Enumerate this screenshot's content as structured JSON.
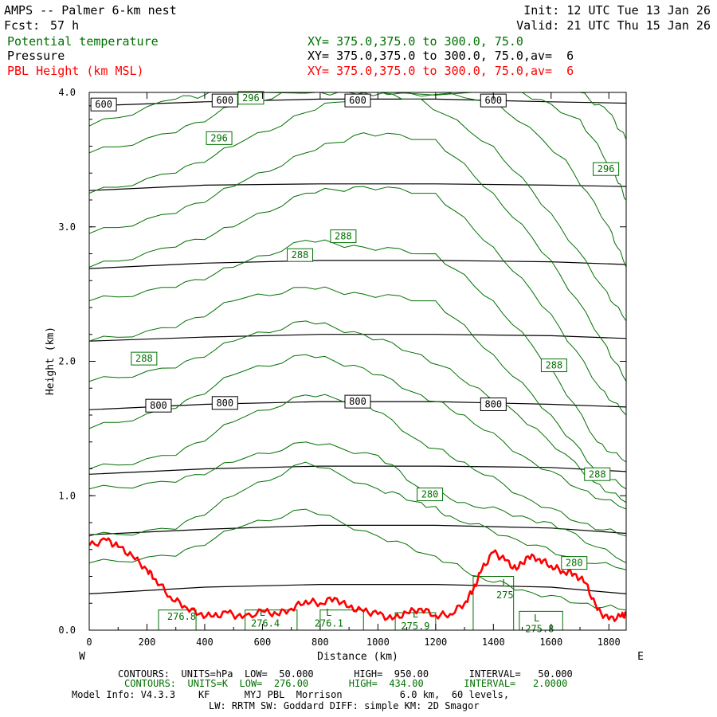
{
  "header": {
    "title": "AMPS -- Palmer 6-km nest",
    "fcst_label": "Fcst:",
    "fcst_value": "57 h",
    "init": "Init: 12 UTC Tue 13 Jan 26",
    "valid": "Valid: 21 UTC Thu 15 Jan 26"
  },
  "fields": [
    {
      "name": "Potential temperature",
      "xy": "XY= 375.0,375.0 to 300.0, 75.0",
      "color": "#007000"
    },
    {
      "name": "Pressure",
      "xy": "XY= 375.0,375.0 to 300.0, 75.0,av=  6",
      "color": "#000000"
    },
    {
      "name": "PBL Height (km MSL)",
      "xy": "XY= 375.0,375.0 to 300.0, 75.0,av=  6",
      "color": "#ff0000"
    }
  ],
  "footer": {
    "line1": "CONTOURS:  UNITS=hPa  LOW=  50.000       HIGH=  950.00       INTERVAL=   50.000",
    "line2": "CONTOURS:  UNITS=K  LOW=  276.00       HIGH=  434.00       INTERVAL=   2.0000",
    "line3": "Model Info: V4.3.3    KF      MYJ PBL  Morrison          6.0 km,  60 levels,",
    "line4": "LW: RRTM SW: Goddard DIFF: simple KM: 2D Smagor"
  },
  "colors": {
    "theta": "#007000",
    "pressure": "#000000",
    "pbl": "#ff0000",
    "axis": "#000000"
  },
  "chart_data": {
    "type": "line",
    "xlabel": "Distance (km)",
    "ylabel": "Height (km)",
    "xlim": [
      0,
      1860
    ],
    "ylim": [
      0,
      4.0
    ],
    "x_ticks": [
      0,
      200,
      400,
      600,
      800,
      1000,
      1200,
      1400,
      1600,
      1800
    ],
    "y_ticks": [
      "0.0",
      "1.0",
      "2.0",
      "3.0",
      "4.0"
    ],
    "x_end_labels": {
      "left": "W",
      "right": "E"
    },
    "grid": false,
    "series": [
      {
        "name": "Pressure",
        "kind": "pressure",
        "color": "#000000",
        "lines": [
          {
            "level": 600,
            "x": [
              0,
              400,
              800,
              1200,
              1600,
              1860
            ],
            "y": [
              3.9,
              3.93,
              3.95,
              3.95,
              3.93,
              3.92
            ]
          },
          {
            "level": 650,
            "x": [
              0,
              400,
              800,
              1200,
              1600,
              1860
            ],
            "y": [
              3.27,
              3.31,
              3.32,
              3.32,
              3.31,
              3.3
            ]
          },
          {
            "level": 700,
            "x": [
              0,
              400,
              800,
              1200,
              1600,
              1860
            ],
            "y": [
              2.69,
              2.73,
              2.75,
              2.75,
              2.74,
              2.72
            ]
          },
          {
            "level": 750,
            "x": [
              0,
              400,
              800,
              1200,
              1600,
              1860
            ],
            "y": [
              2.15,
              2.18,
              2.2,
              2.2,
              2.19,
              2.17
            ]
          },
          {
            "level": 800,
            "x": [
              0,
              400,
              800,
              1200,
              1600,
              1860
            ],
            "y": [
              1.64,
              1.68,
              1.7,
              1.7,
              1.68,
              1.66
            ]
          },
          {
            "level": 850,
            "x": [
              0,
              400,
              800,
              1200,
              1600,
              1860
            ],
            "y": [
              1.16,
              1.2,
              1.22,
              1.22,
              1.21,
              1.18
            ]
          },
          {
            "level": 900,
            "x": [
              0,
              400,
              800,
              1200,
              1600,
              1860
            ],
            "y": [
              0.71,
              0.75,
              0.78,
              0.78,
              0.76,
              0.72
            ]
          },
          {
            "level": 950,
            "x": [
              0,
              400,
              800,
              1200,
              1600,
              1860
            ],
            "y": [
              0.27,
              0.32,
              0.34,
              0.34,
              0.32,
              0.27
            ]
          }
        ]
      },
      {
        "name": "Potential temperature",
        "kind": "theta",
        "color": "#007000",
        "lines": [
          {
            "x": [
              0,
              300,
              500,
              750,
              1000,
              1200,
              1350,
              1500,
              1700,
              1860
            ],
            "y": [
              0.5,
              0.55,
              0.75,
              0.9,
              0.7,
              0.55,
              0.4,
              0.3,
              0.2,
              0.15
            ]
          },
          {
            "x": [
              0,
              300,
              500,
              750,
              1000,
              1150,
              1250,
              1450,
              1650,
              1860
            ],
            "y": [
              0.7,
              0.75,
              1.0,
              1.25,
              1.05,
              0.95,
              0.85,
              0.7,
              0.55,
              0.45
            ]
          },
          {
            "x": [
              0,
              300,
              500,
              750,
              1000,
              1150,
              1300,
              1500,
              1650,
              1860
            ],
            "y": [
              1.05,
              1.1,
              1.25,
              1.4,
              1.3,
              1.05,
              0.95,
              0.85,
              0.75,
              0.5
            ]
          },
          {
            "x": [
              0,
              300,
              500,
              750,
              950,
              1150,
              1300,
              1500,
              1700,
              1860
            ],
            "y": [
              1.2,
              1.3,
              1.55,
              1.75,
              1.7,
              1.4,
              1.25,
              1.0,
              0.8,
              0.7
            ]
          },
          {
            "x": [
              0,
              300,
              500,
              750,
              950,
              1150,
              1300,
              1500,
              1700,
              1860
            ],
            "y": [
              1.5,
              1.65,
              1.9,
              2.05,
              1.95,
              1.75,
              1.6,
              1.3,
              1.05,
              0.9
            ]
          },
          {
            "x": [
              0,
              300,
              500,
              750,
              950,
              1150,
              1350,
              1550,
              1750,
              1860
            ],
            "y": [
              1.85,
              1.95,
              2.15,
              2.3,
              2.2,
              2.05,
              1.8,
              1.5,
              1.1,
              0.95
            ]
          },
          {
            "x": [
              0,
              300,
              500,
              750,
              950,
              1200,
              1400,
              1600,
              1750,
              1860
            ],
            "y": [
              2.15,
              2.25,
              2.45,
              2.55,
              2.5,
              2.45,
              2.05,
              1.6,
              1.2,
              1.05
            ]
          },
          {
            "x": [
              0,
              300,
              500,
              750,
              950,
              1200,
              1400,
              1600,
              1760,
              1860
            ],
            "y": [
              2.45,
              2.55,
              2.7,
              2.9,
              2.85,
              2.8,
              2.45,
              1.95,
              1.4,
              1.25
            ]
          },
          {
            "x": [
              0,
              300,
              500,
              750,
              950,
              1200,
              1400,
              1600,
              1770,
              1860
            ],
            "y": [
              2.7,
              2.85,
              3.0,
              3.25,
              3.3,
              3.25,
              2.85,
              2.35,
              1.8,
              1.6
            ]
          },
          {
            "x": [
              0,
              300,
              500,
              750,
              950,
              1200,
              1400,
              1600,
              1780,
              1860
            ],
            "y": [
              2.95,
              3.1,
              3.3,
              3.55,
              3.7,
              3.65,
              3.25,
              2.75,
              2.15,
              1.85
            ]
          },
          {
            "x": [
              0,
              300,
              500,
              750,
              950,
              1150,
              1400,
              1600,
              1780,
              1860
            ],
            "y": [
              3.25,
              3.4,
              3.6,
              3.85,
              4.0,
              3.95,
              3.6,
              3.1,
              2.55,
              2.3
            ]
          },
          {
            "x": [
              0,
              300,
              500,
              700,
              900,
              1100,
              1400,
              1650,
              1800,
              1860
            ],
            "y": [
              3.55,
              3.7,
              3.9,
              4.0,
              4.0,
              4.0,
              3.95,
              3.5,
              3.0,
              2.7
            ]
          },
          {
            "x": [
              0,
              300,
              450,
              600,
              1500,
              1700,
              1820,
              1860
            ],
            "y": [
              3.75,
              3.95,
              4.0,
              4.0,
              4.0,
              3.8,
              3.4,
              3.2
            ]
          },
          {
            "x": [
              1700,
              1800,
              1860
            ],
            "y": [
              4.0,
              3.85,
              3.65
            ]
          }
        ]
      },
      {
        "name": "PBL Height (km MSL)",
        "kind": "pbl",
        "color": "#ff0000",
        "x": [
          0,
          60,
          100,
          150,
          200,
          230,
          280,
          330,
          380,
          430,
          480,
          530,
          600,
          650,
          700,
          750,
          800,
          850,
          900,
          950,
          1000,
          1050,
          1100,
          1150,
          1200,
          1250,
          1300,
          1330,
          1360,
          1400,
          1440,
          1480,
          1520,
          1560,
          1600,
          1640,
          1680,
          1720,
          1760,
          1800,
          1840,
          1860
        ],
        "y": [
          0.63,
          0.67,
          0.62,
          0.55,
          0.45,
          0.38,
          0.25,
          0.18,
          0.12,
          0.1,
          0.13,
          0.09,
          0.14,
          0.12,
          0.16,
          0.22,
          0.2,
          0.24,
          0.17,
          0.14,
          0.12,
          0.08,
          0.13,
          0.16,
          0.11,
          0.12,
          0.2,
          0.3,
          0.45,
          0.58,
          0.52,
          0.45,
          0.55,
          0.53,
          0.48,
          0.44,
          0.42,
          0.35,
          0.15,
          0.08,
          0.1,
          0.12
        ]
      }
    ],
    "contour_labels": [
      {
        "text": "600",
        "kind": "pressure",
        "x": 50,
        "y": 3.91
      },
      {
        "text": "600",
        "kind": "pressure",
        "x": 470,
        "y": 3.94
      },
      {
        "text": "600",
        "kind": "pressure",
        "x": 930,
        "y": 3.94
      },
      {
        "text": "600",
        "kind": "pressure",
        "x": 1400,
        "y": 3.94
      },
      {
        "text": "800",
        "kind": "pressure",
        "x": 240,
        "y": 1.67
      },
      {
        "text": "800",
        "kind": "pressure",
        "x": 470,
        "y": 1.69
      },
      {
        "text": "800",
        "kind": "pressure",
        "x": 930,
        "y": 1.7
      },
      {
        "text": "800",
        "kind": "pressure",
        "x": 1400,
        "y": 1.68
      },
      {
        "text": "296",
        "kind": "theta",
        "x": 560,
        "y": 3.96
      },
      {
        "text": "296",
        "kind": "theta",
        "x": 450,
        "y": 3.66
      },
      {
        "text": "296",
        "kind": "theta",
        "x": 1790,
        "y": 3.43
      },
      {
        "text": "288",
        "kind": "theta",
        "x": 880,
        "y": 2.93
      },
      {
        "text": "288",
        "kind": "theta",
        "x": 730,
        "y": 2.79
      },
      {
        "text": "288",
        "kind": "theta",
        "x": 190,
        "y": 2.02
      },
      {
        "text": "288",
        "kind": "theta",
        "x": 1610,
        "y": 1.97
      },
      {
        "text": "288",
        "kind": "theta",
        "x": 1760,
        "y": 1.16
      },
      {
        "text": "280",
        "kind": "theta",
        "x": 1180,
        "y": 1.01
      },
      {
        "text": "280",
        "kind": "theta",
        "x": 1680,
        "y": 0.5
      }
    ],
    "box_labels": [
      {
        "text": "276.8",
        "x": 320,
        "y": 0.1
      },
      {
        "text": "L",
        "x": 600,
        "y": 0.13
      },
      {
        "text": "276.4",
        "x": 610,
        "y": 0.05
      },
      {
        "text": "L",
        "x": 830,
        "y": 0.13
      },
      {
        "text": "276.1",
        "x": 830,
        "y": 0.05
      },
      {
        "text": "L",
        "x": 1130,
        "y": 0.12
      },
      {
        "text": "275.9",
        "x": 1130,
        "y": 0.03
      },
      {
        "text": "L",
        "x": 1440,
        "y": 0.35
      },
      {
        "text": "275",
        "x": 1440,
        "y": 0.26
      },
      {
        "text": "L",
        "x": 1550,
        "y": 0.09
      },
      {
        "text": "275.8",
        "x": 1560,
        "y": 0.01
      }
    ]
  }
}
